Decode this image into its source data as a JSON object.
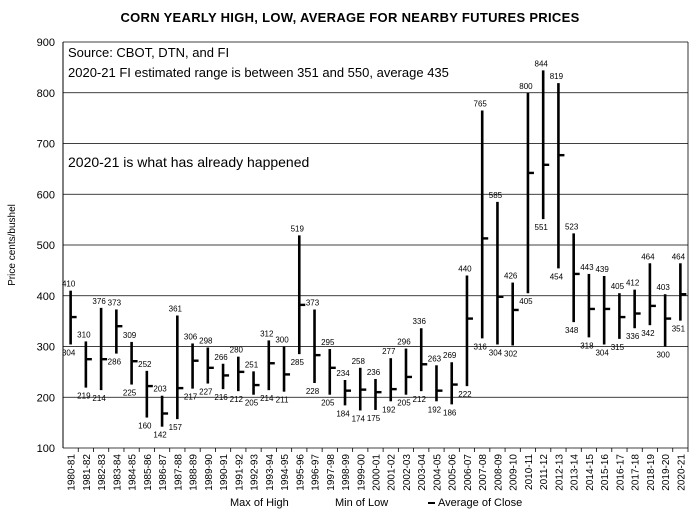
{
  "chart_data": {
    "type": "high-low-close",
    "title": "CORN YEARLY HIGH, LOW, AVERAGE FOR NEARBY FUTURES PRICES",
    "ylabel": "Price cents/bushel",
    "ylim": [
      100,
      900
    ],
    "yticks": [
      100,
      200,
      300,
      400,
      500,
      600,
      700,
      800,
      900
    ],
    "grid": true,
    "notes": [
      "Source: CBOT, DTN, and FI",
      "2020-21 FI estimated range is between 351 and 550, average 435",
      "2020-21 is what has already happened"
    ],
    "legend": [
      "Max of High",
      "Min of Low",
      "Average of Close"
    ],
    "categories": [
      "1980-81",
      "1981-82",
      "1982-83",
      "1983-84",
      "1984-85",
      "1985-86",
      "1986-87",
      "1987-88",
      "1988-89",
      "1989-90",
      "1990-91",
      "1991-92",
      "1992-93",
      "1993-94",
      "1994-95",
      "1995-96",
      "1996-97",
      "1997-98",
      "1998-99",
      "1999-00",
      "2000-01",
      "2001-02",
      "2002-03",
      "2003-04",
      "2004-05",
      "2005-06",
      "2006-07",
      "2007-08",
      "2008-09",
      "2009-10",
      "2010-11",
      "2011-12",
      "2012-13",
      "2013-14",
      "2014-15",
      "2015-16",
      "2016-17",
      "2017-18",
      "2018-19",
      "2019-20",
      "2020-21"
    ],
    "high": [
      410,
      310,
      376,
      373,
      309,
      252,
      203,
      361,
      306,
      298,
      266,
      280,
      251,
      312,
      300,
      519,
      373,
      295,
      234,
      258,
      236,
      277,
      296,
      336,
      263,
      269,
      440,
      765,
      585,
      426,
      800,
      844,
      819,
      523,
      443,
      439,
      405,
      412,
      464,
      403,
      464
    ],
    "low": [
      304,
      219,
      214,
      286,
      225,
      160,
      142,
      157,
      217,
      227,
      216,
      212,
      205,
      214,
      211,
      285,
      228,
      205,
      184,
      174,
      175,
      192,
      205,
      212,
      192,
      186,
      222,
      316,
      304,
      302,
      405,
      551,
      454,
      348,
      318,
      304,
      315,
      336,
      342,
      300,
      351
    ],
    "average": [
      358,
      275,
      275,
      340,
      271,
      222,
      168,
      218,
      272,
      258,
      243,
      250,
      224,
      267,
      245,
      382,
      283,
      258,
      213,
      215,
      210,
      216,
      240,
      265,
      213,
      225,
      355,
      513,
      398,
      372,
      642,
      658,
      677,
      443,
      374,
      374,
      358,
      365,
      380,
      355,
      403
    ],
    "high_labels": [
      "410",
      "310",
      "376",
      "373",
      "309",
      "252",
      "203",
      "361",
      "306",
      "298",
      "266",
      "280",
      "251",
      "312",
      "300",
      "519",
      "373",
      "295",
      "234",
      "258",
      "236",
      "277",
      "296",
      "336",
      "263",
      "269",
      "440",
      "765",
      "585",
      "426",
      "800",
      "844",
      "819",
      "523",
      "443",
      "439",
      "405",
      "412",
      "464",
      "403",
      "464"
    ],
    "low_labels": [
      "304",
      "219",
      "214",
      "286",
      "225",
      "160",
      "142",
      "157",
      "217",
      "227",
      "216",
      "212",
      "205",
      "214",
      "211",
      "285",
      "228",
      "205",
      "184",
      "174",
      "175",
      "192",
      "205",
      "212",
      "192",
      "186",
      "222",
      "316",
      "304",
      "302",
      "405",
      "551",
      "454",
      "348",
      "318",
      "304",
      "315",
      "336",
      "342",
      "300",
      "351"
    ]
  }
}
